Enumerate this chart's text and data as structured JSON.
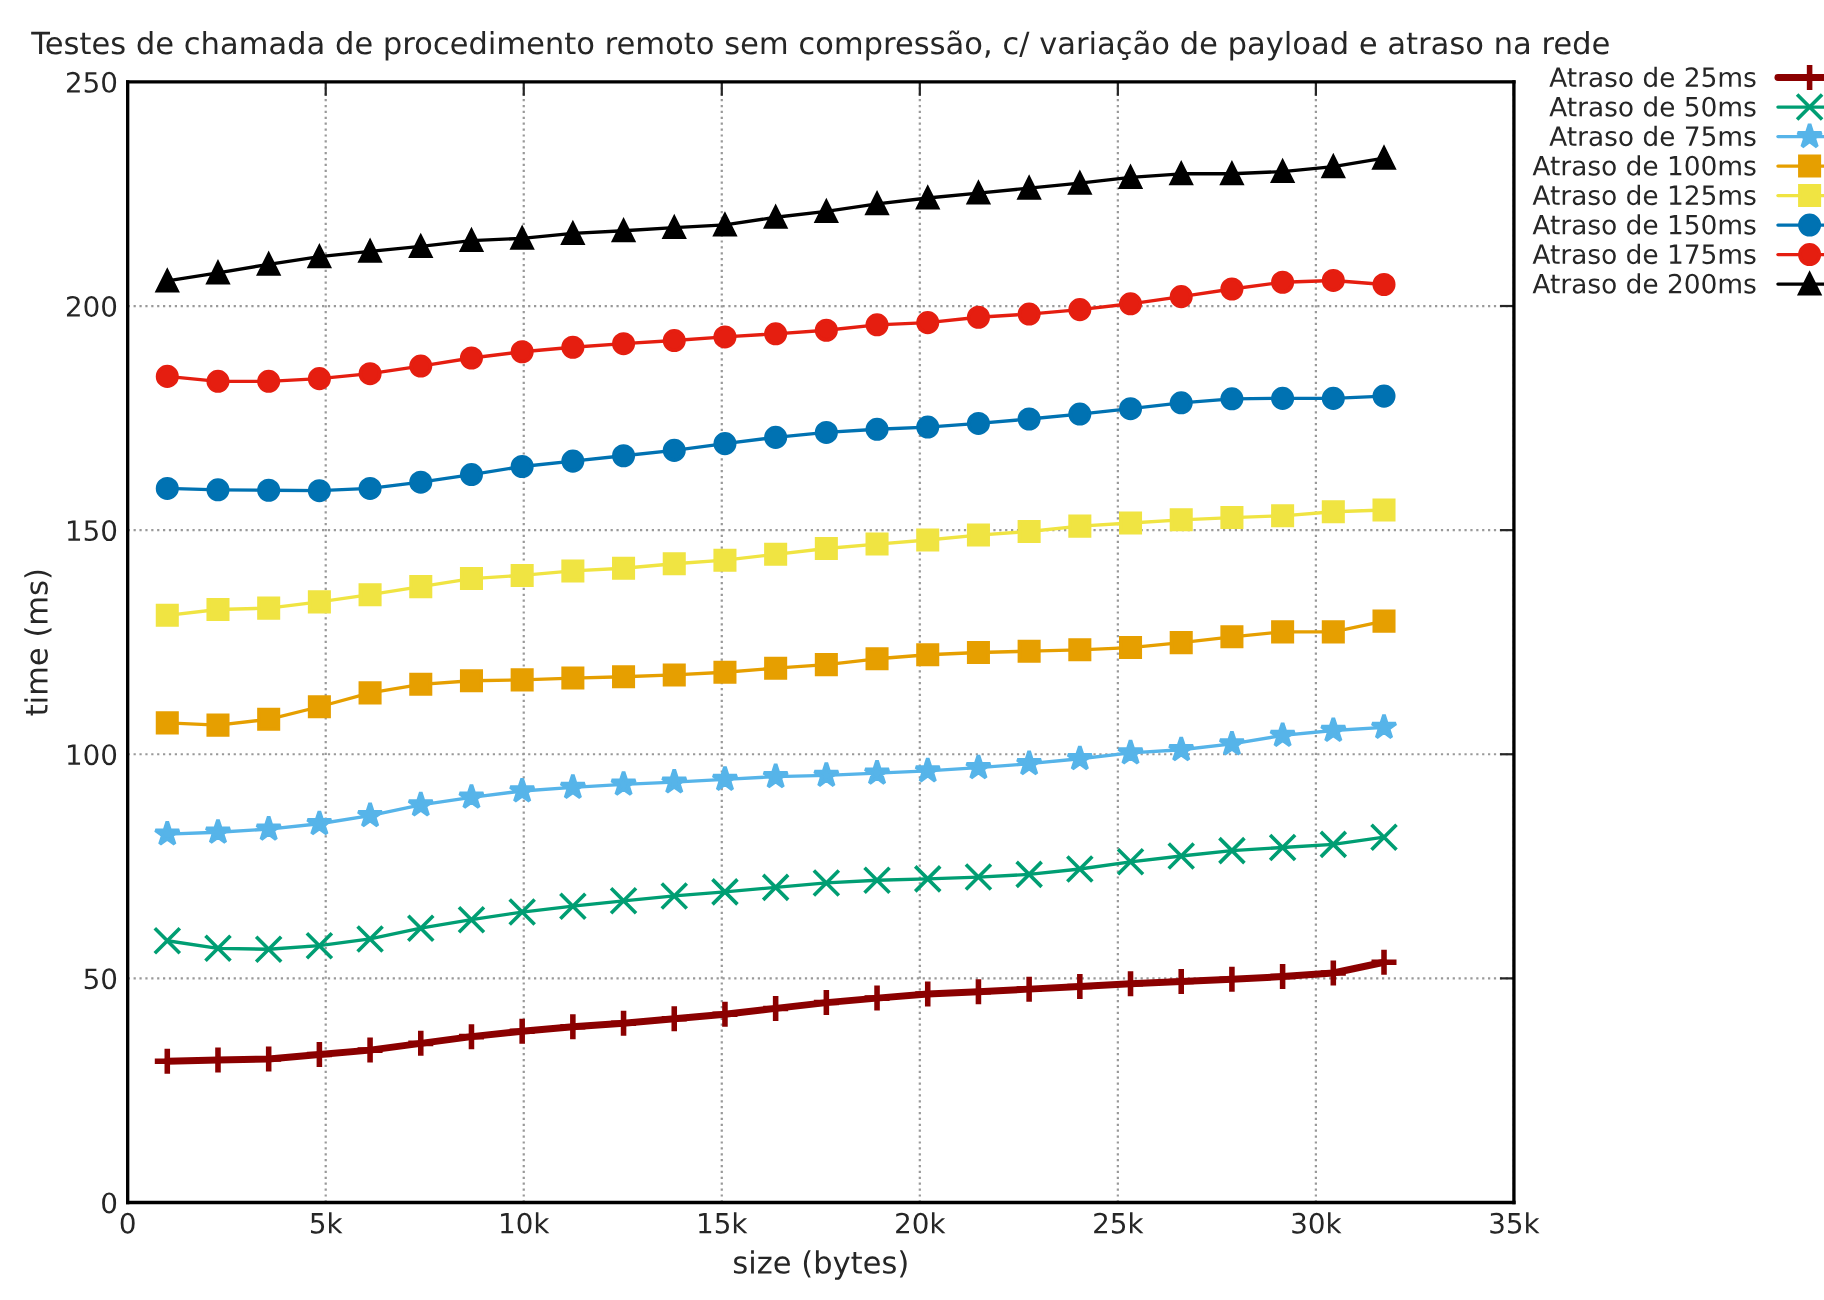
{
  "chart_data": {
    "type": "line",
    "title": "Testes de chamada de procedimento remoto sem compressão, c/ variação de payload e atraso na rede",
    "xlabel": "size (bytes)",
    "ylabel": "time (ms)",
    "x": [
      1000,
      2280,
      3560,
      4840,
      6120,
      7400,
      8680,
      9960,
      11240,
      12520,
      13800,
      15080,
      16360,
      17640,
      18920,
      20200,
      21480,
      22760,
      24040,
      25320,
      26600,
      27880,
      29160,
      30440,
      31720
    ],
    "xlim": [
      0,
      35000
    ],
    "xticks": [
      {
        "value": 0,
        "label": "0"
      },
      {
        "value": 5000,
        "label": "5k"
      },
      {
        "value": 10000,
        "label": "10k"
      },
      {
        "value": 15000,
        "label": "15k"
      },
      {
        "value": 20000,
        "label": "20k"
      },
      {
        "value": 25000,
        "label": "25k"
      },
      {
        "value": 30000,
        "label": "30k"
      },
      {
        "value": 35000,
        "label": "35k"
      }
    ],
    "ylim": [
      0,
      250
    ],
    "yticks": [
      0,
      50,
      100,
      150,
      200,
      250
    ],
    "grid": true,
    "legend": "top right",
    "series": [
      {
        "name": "Atraso de 25ms",
        "color": "#8b0000",
        "marker": "plus",
        "values": [
          31.5,
          31.8,
          32,
          33,
          34,
          35.5,
          37,
          38.2,
          39.2,
          40,
          41,
          42,
          43.3,
          44.6,
          45.6,
          46.5,
          47,
          47.6,
          48.2,
          48.8,
          49.3,
          49.8,
          50.4,
          51.2,
          53.6
        ]
      },
      {
        "name": "Atraso de 50ms",
        "color": "#009e73",
        "marker": "cross",
        "values": [
          58.4,
          56.7,
          56.5,
          57.3,
          58.8,
          61.2,
          63.1,
          64.8,
          66.1,
          67.3,
          68.4,
          69.3,
          70.3,
          71.3,
          71.9,
          72.2,
          72.6,
          73.2,
          74.4,
          76,
          77.3,
          78.5,
          79.2,
          79.9,
          81.5
        ]
      },
      {
        "name": "Atraso de 75ms",
        "color": "#56b4e9",
        "marker": "star",
        "values": [
          82.2,
          82.6,
          83.3,
          84.5,
          86.3,
          88.7,
          90.4,
          91.8,
          92.6,
          93.3,
          93.8,
          94.4,
          95,
          95.3,
          95.8,
          96.3,
          97,
          97.9,
          99,
          100.3,
          101,
          102.3,
          104.2,
          105.3,
          106
        ]
      },
      {
        "name": "Atraso de 100ms",
        "color": "#e69f00",
        "marker": "square",
        "values": [
          107,
          106.5,
          107.8,
          110.6,
          113.7,
          115.6,
          116.4,
          116.6,
          117,
          117.3,
          117.7,
          118.3,
          119.2,
          120,
          121.3,
          122.2,
          122.7,
          123,
          123.3,
          123.8,
          124.9,
          126.2,
          127.3,
          127.3,
          129.7
        ]
      },
      {
        "name": "Atraso de 125ms",
        "color": "#f0e442",
        "marker": "square",
        "values": [
          131,
          132.3,
          132.6,
          134,
          135.6,
          137.4,
          139.2,
          139.9,
          140.9,
          141.5,
          142.5,
          143.3,
          144.6,
          145.9,
          146.9,
          147.8,
          148.9,
          149.7,
          150.9,
          151.6,
          152.3,
          152.8,
          153.2,
          154.1,
          154.5
        ]
      },
      {
        "name": "Atraso de 150ms",
        "color": "#0072b2",
        "marker": "circle",
        "values": [
          159.3,
          159,
          158.9,
          158.8,
          159.3,
          160.7,
          162.4,
          164.2,
          165.4,
          166.6,
          167.8,
          169.3,
          170.7,
          171.8,
          172.5,
          173,
          173.8,
          174.8,
          175.9,
          177.1,
          178.4,
          179.3,
          179.4,
          179.4,
          179.9
        ]
      },
      {
        "name": "Atraso de 175ms",
        "color": "#e51e10",
        "marker": "circle",
        "values": [
          184.3,
          183.2,
          183.2,
          183.8,
          184.9,
          186.6,
          188.4,
          189.8,
          190.8,
          191.6,
          192.3,
          193.1,
          193.8,
          194.6,
          195.8,
          196.3,
          197.5,
          198.2,
          199.2,
          200.5,
          202.1,
          203.8,
          205.3,
          205.7,
          204.8
        ]
      },
      {
        "name": "Atraso de 200ms",
        "color": "#000000",
        "marker": "triangle",
        "values": [
          205.6,
          207.4,
          209.3,
          211,
          212.2,
          213.3,
          214.6,
          215.1,
          216.2,
          216.8,
          217.5,
          218.1,
          219.8,
          221.1,
          222.8,
          224.1,
          225.2,
          226.3,
          227.4,
          228.7,
          229.5,
          229.5,
          230,
          231.1,
          233
        ]
      }
    ]
  }
}
